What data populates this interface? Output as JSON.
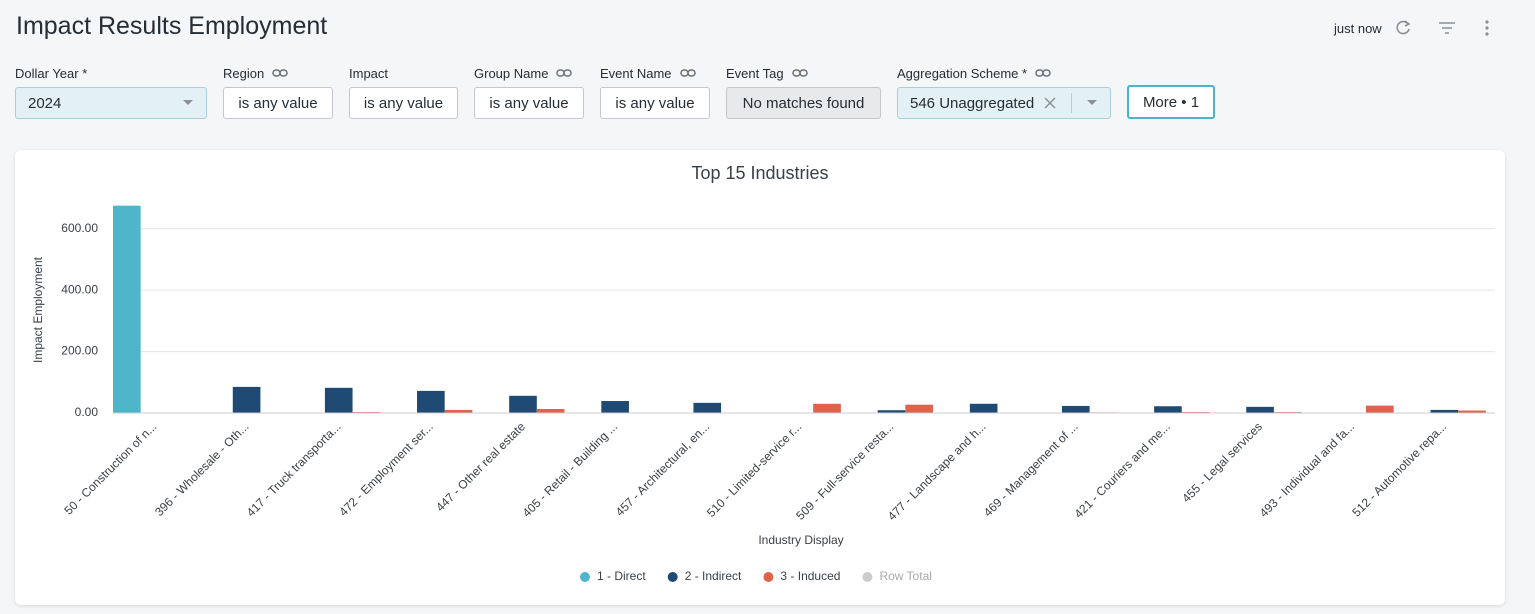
{
  "header": {
    "title": "Impact Results Employment",
    "updated": "just now"
  },
  "filters": [
    {
      "label": "Dollar Year *",
      "value": "2024",
      "linked": false,
      "dropdown": true
    },
    {
      "label": "Region",
      "value": "is any value",
      "linked": true
    },
    {
      "label": "Impact",
      "value": "is any value",
      "linked": false
    },
    {
      "label": "Group Name",
      "value": "is any value",
      "linked": true
    },
    {
      "label": "Event Name",
      "value": "is any value",
      "linked": true
    },
    {
      "label": "Event Tag",
      "value": "No matches found",
      "linked": true,
      "disabled": true
    },
    {
      "label": "Aggregation Scheme *",
      "value": "546 Unaggregated",
      "linked": true,
      "dropdown": true,
      "clearable": true
    }
  ],
  "more_button": "More • 1",
  "chart_data": {
    "type": "bar",
    "title": "Top 15 Industries",
    "x_label": "Industry Display",
    "y_label": "Impact Employment",
    "categories": [
      "50 - Construction of n...",
      "396 - Wholesale - Oth...",
      "417 - Truck transporta...",
      "472 - Employment ser...",
      "447 - Other real estate",
      "405 - Retail - Building ...",
      "457 - Architectural, en...",
      "510 - Limited-service r...",
      "509 - Full-service resta...",
      "477 - Landscape and h...",
      "469 - Management of ...",
      "421 - Couriers and me...",
      "455 - Legal services",
      "493 - Individual and fa...",
      "512 - Automotive repa..."
    ],
    "series": [
      {
        "name": "1 - Direct",
        "color": "#4fb5c9",
        "values": [
          675,
          0,
          0,
          0,
          0,
          0,
          0,
          0,
          0,
          0,
          0,
          0,
          0,
          0,
          0
        ]
      },
      {
        "name": "2 - Indirect",
        "color": "#1f4a73",
        "values": [
          0,
          85,
          82,
          72,
          56,
          39,
          33,
          0,
          9,
          30,
          23,
          22,
          20,
          0,
          10
        ]
      },
      {
        "name": "3 - Induced",
        "color": "#e0624a",
        "values": [
          0,
          1,
          3,
          10,
          13,
          0,
          0,
          30,
          27,
          0,
          2,
          3,
          3,
          24,
          8
        ]
      },
      {
        "name": "Row Total",
        "color": "#cccccc",
        "hidden": true,
        "values": [
          null,
          null,
          null,
          null,
          null,
          null,
          null,
          null,
          null,
          null,
          null,
          null,
          null,
          null,
          null
        ]
      }
    ],
    "ylim": [
      0,
      700
    ],
    "yticks": [
      {
        "value": 0,
        "label": "0.00"
      },
      {
        "value": 200,
        "label": "200.00"
      },
      {
        "value": 400,
        "label": "400.00"
      },
      {
        "value": 600,
        "label": "600.00"
      }
    ],
    "grid": true,
    "legend": "bottom"
  }
}
